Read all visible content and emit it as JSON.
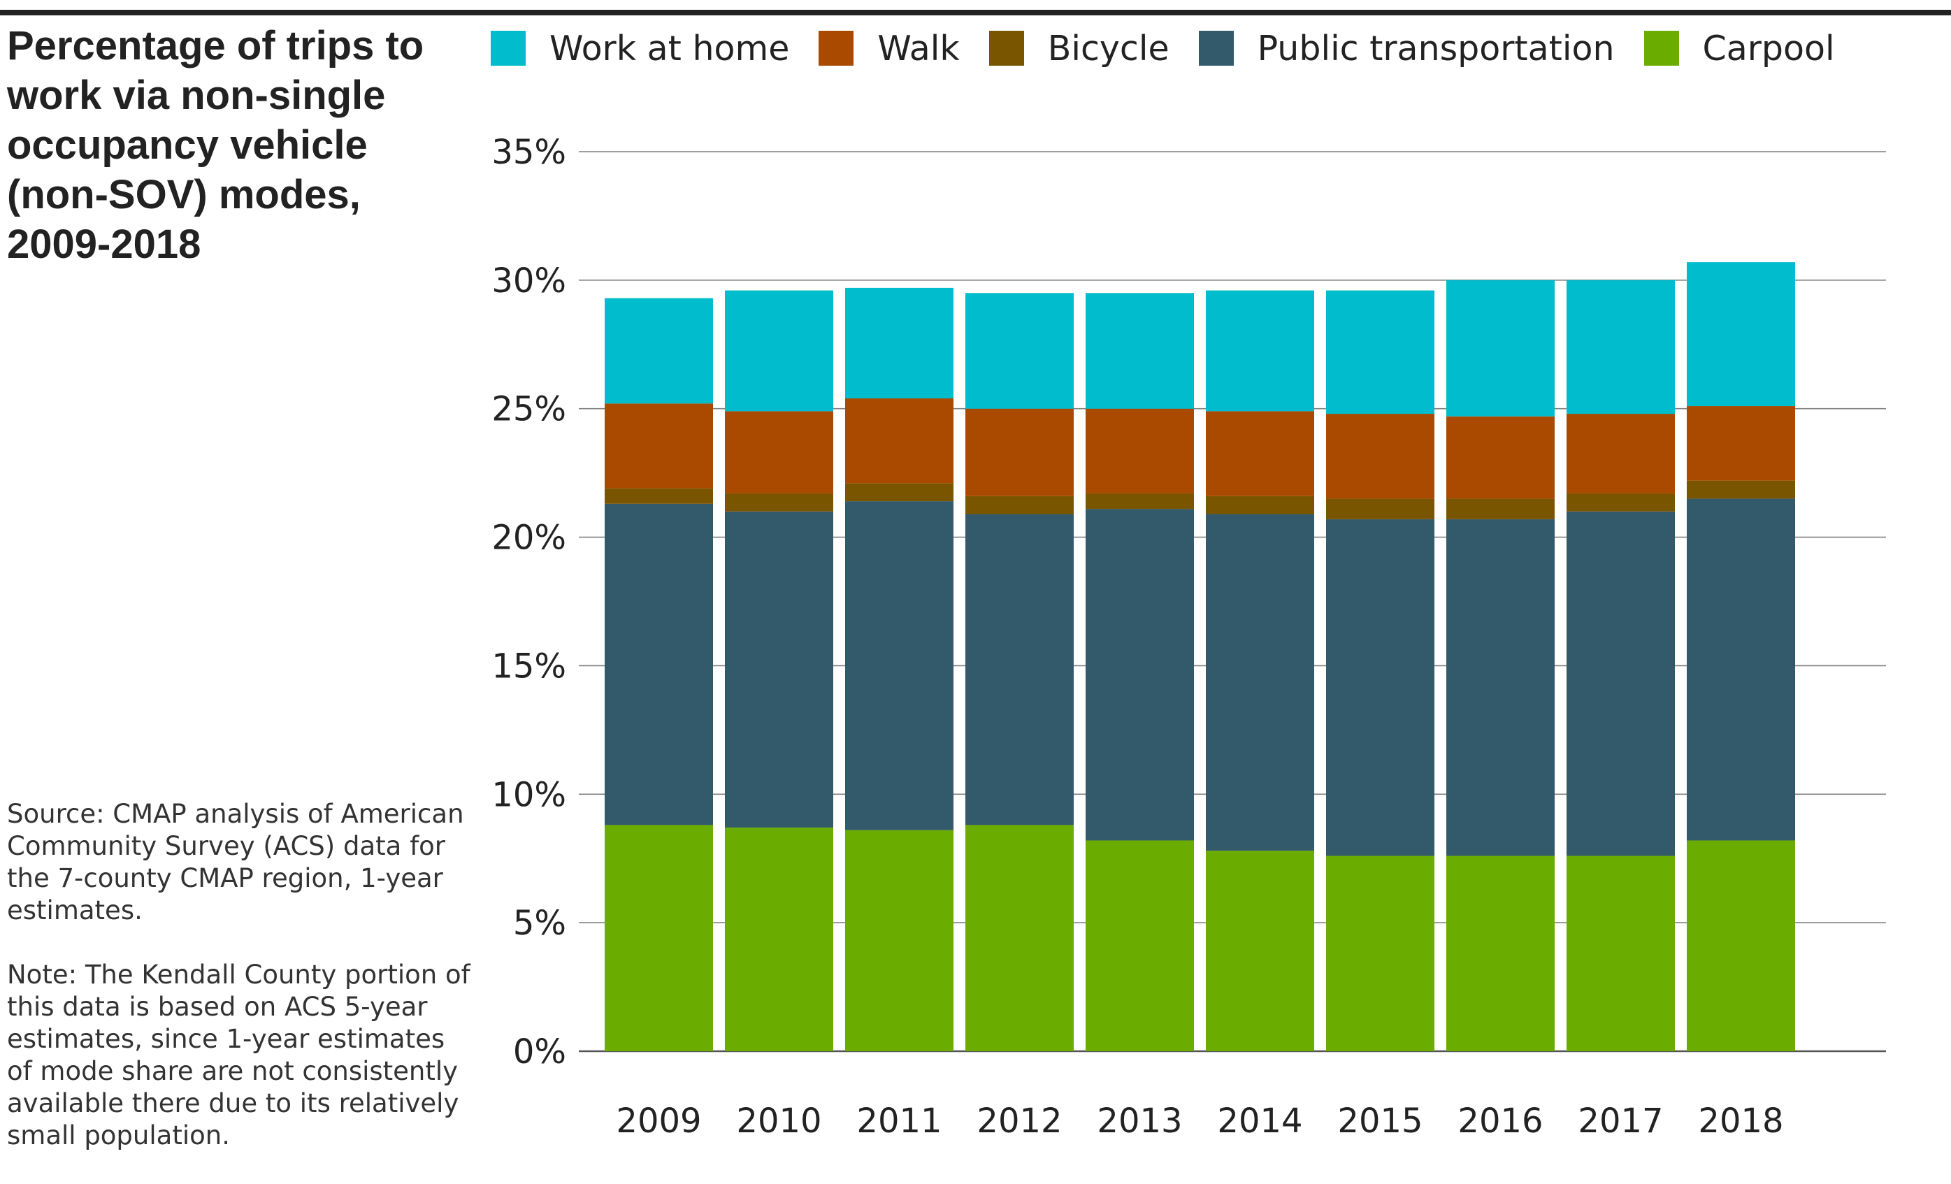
{
  "title": "Percentage of trips to work via non-single occupancy vehicle (non-SOV) modes, 2009-2018",
  "source_note": "Source: CMAP analysis of American Community Survey (ACS) data for the 7-county CMAP region, 1-year estimates.",
  "kendall_note": "Note: The Kendall County portion of this data is based on ACS 5-year estimates, since 1-year estimates of mode share are not consistently available there due to its relatively small population.",
  "legend": [
    {
      "label": "Work at home",
      "color": "#00bccc"
    },
    {
      "label": "Walk",
      "color": "#a94a00"
    },
    {
      "label": "Bicycle",
      "color": "#7a5500"
    },
    {
      "label": "Public transportation",
      "color": "#335a6a"
    },
    {
      "label": "Carpool",
      "color": "#6aad00"
    }
  ],
  "chart_data": {
    "type": "bar",
    "stacked": true,
    "title": "Percentage of trips to work via non-single occupancy vehicle (non-SOV) modes, 2009-2018",
    "categories": [
      "2009",
      "2010",
      "2011",
      "2012",
      "2013",
      "2014",
      "2015",
      "2016",
      "2017",
      "2018"
    ],
    "series": [
      {
        "name": "Carpool",
        "color": "#6aad00",
        "values": [
          8.8,
          8.7,
          8.6,
          8.8,
          8.2,
          7.8,
          7.6,
          7.6,
          7.6,
          8.2
        ]
      },
      {
        "name": "Public transportation",
        "color": "#335a6a",
        "values": [
          12.5,
          12.3,
          12.8,
          12.1,
          12.9,
          13.1,
          13.1,
          13.1,
          13.4,
          13.3
        ]
      },
      {
        "name": "Bicycle",
        "color": "#7a5500",
        "values": [
          0.6,
          0.7,
          0.7,
          0.7,
          0.6,
          0.7,
          0.8,
          0.8,
          0.7,
          0.7
        ]
      },
      {
        "name": "Walk",
        "color": "#a94a00",
        "values": [
          3.3,
          3.2,
          3.3,
          3.4,
          3.3,
          3.3,
          3.3,
          3.2,
          3.1,
          2.9
        ]
      },
      {
        "name": "Work at home",
        "color": "#00bccc",
        "values": [
          4.1,
          4.7,
          4.3,
          4.5,
          4.5,
          4.7,
          4.8,
          5.3,
          5.2,
          5.6
        ]
      }
    ],
    "yticks": [
      "0%",
      "5%",
      "10%",
      "15%",
      "20%",
      "25%",
      "30%",
      "35%"
    ],
    "ylim": [
      0,
      35
    ],
    "grid": true,
    "legend_position": "top",
    "xlabel": "",
    "ylabel": ""
  }
}
